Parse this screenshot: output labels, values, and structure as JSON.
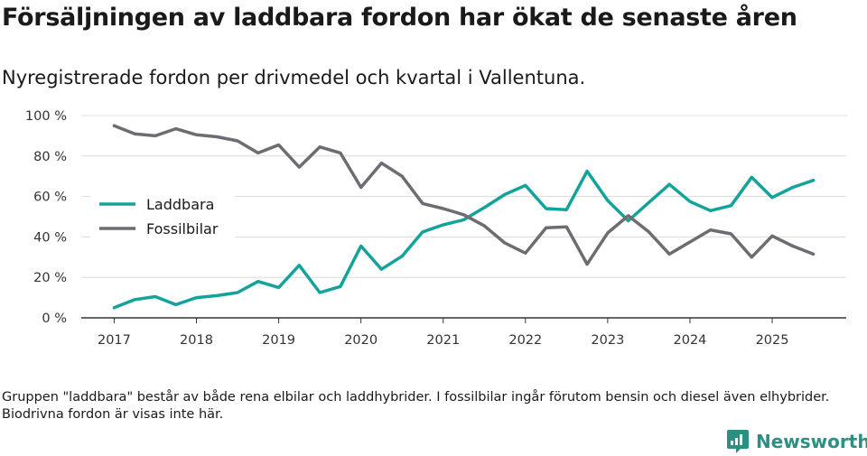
{
  "header": {
    "title": "Försäljningen av laddbara fordon har ökat de senaste åren",
    "subtitle": "Nyregistrerade fordon per drivmedel och kvartal i Vallentuna."
  },
  "footer": {
    "note": "Gruppen \"laddbara\" består av både rena elbilar och laddhybrider. I fossilbilar ingår förutom bensin och diesel även elhybrider. Biodrivna fordon är visas inte här.",
    "brand": "Newsworthy",
    "brand_color": "#2d8f82"
  },
  "chart_data": {
    "type": "line",
    "title": "Försäljningen av laddbara fordon har ökat de senaste åren",
    "subtitle": "Nyregistrerade fordon per drivmedel och kvartal i Vallentuna.",
    "xlabel": "",
    "ylabel": "",
    "ylim": [
      0,
      100
    ],
    "y_ticks": [
      0,
      20,
      40,
      60,
      80,
      100
    ],
    "y_tick_labels": [
      "0 %",
      "20 %",
      "40 %",
      "60 %",
      "80 %",
      "100 %"
    ],
    "x_range": [
      2016.6,
      2025.9
    ],
    "x_ticks": [
      2017,
      2018,
      2019,
      2020,
      2021,
      2022,
      2023,
      2024,
      2025
    ],
    "x_tick_labels": [
      "2017",
      "2018",
      "2019",
      "2020",
      "2021",
      "2022",
      "2023",
      "2024",
      "2025"
    ],
    "grid": true,
    "legend_position": "left-middle",
    "x": [
      2017.0,
      2017.25,
      2017.5,
      2017.75,
      2018.0,
      2018.25,
      2018.5,
      2018.75,
      2019.0,
      2019.25,
      2019.5,
      2019.75,
      2020.0,
      2020.25,
      2020.5,
      2020.75,
      2021.0,
      2021.25,
      2021.5,
      2021.75,
      2022.0,
      2022.25,
      2022.5,
      2022.75,
      2023.0,
      2023.25,
      2023.5,
      2023.75,
      2024.0,
      2024.25,
      2024.5,
      2024.75,
      2025.0,
      2025.25,
      2025.5
    ],
    "series": [
      {
        "name": "Laddbara",
        "color": "#13a39a",
        "values": [
          5,
          9,
          10.5,
          6.5,
          10,
          11,
          12.5,
          18,
          15,
          26,
          12.5,
          15.5,
          35.5,
          24,
          30.5,
          42.5,
          46,
          48.5,
          54.5,
          61,
          65.5,
          54,
          53.5,
          72.5,
          58,
          48,
          57,
          66,
          57.5,
          53,
          55.5,
          69.5,
          59.5,
          64.5,
          68
        ]
      },
      {
        "name": "Fossilbilar",
        "color": "#6d6c72",
        "values": [
          95,
          91,
          90,
          93.5,
          90.5,
          89.5,
          87.5,
          81.5,
          85.5,
          74.5,
          84.5,
          81.5,
          64.5,
          76.5,
          70,
          56.5,
          54,
          51,
          45.5,
          37,
          32,
          44.5,
          45,
          26.5,
          42,
          50.5,
          42.5,
          31.5,
          37.5,
          43.5,
          41.5,
          30,
          40.5,
          35.5,
          31.5
        ]
      }
    ]
  }
}
